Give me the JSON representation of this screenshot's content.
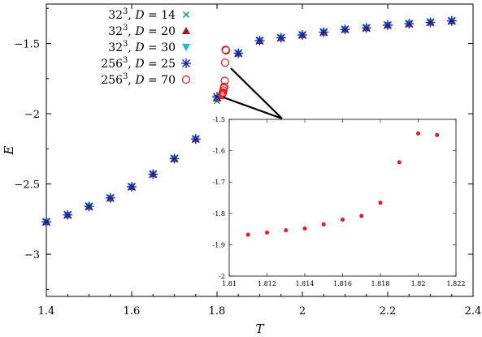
{
  "chart_data": [
    {
      "type": "scatter",
      "xlabel": "T",
      "ylabel": "E",
      "xlim": [
        1.4,
        2.4
      ],
      "ylim": [
        -3.3,
        -1.22
      ],
      "xticks": [
        1.4,
        1.6,
        1.8,
        2.0,
        2.2,
        2.4
      ],
      "xtick_labels": [
        "1.4",
        "1.6",
        "1.8",
        "2",
        "2.2",
        "2.4"
      ],
      "yticks": [
        -3,
        -2.5,
        -2,
        -1.5
      ],
      "ytick_labels": [
        "−3",
        "−2.5",
        "−2",
        "−1.5"
      ],
      "legend_position": "top-left",
      "series": [
        {
          "name_parts": [
            "32",
            "3",
            ", ",
            "D",
            " = 14"
          ],
          "marker": "x",
          "color": "#009e73",
          "x": [
            1.4,
            1.45,
            1.5,
            1.55,
            1.6,
            1.65,
            1.7,
            1.75,
            1.8,
            1.85,
            1.9,
            1.95,
            2.0,
            2.05,
            2.1,
            2.15,
            2.2,
            2.25,
            2.3,
            2.35
          ],
          "y": [
            -2.77,
            -2.72,
            -2.66,
            -2.6,
            -2.52,
            -2.43,
            -2.32,
            -2.18,
            -1.91,
            -1.57,
            -1.48,
            -1.46,
            -1.44,
            -1.42,
            -1.4,
            -1.39,
            -1.37,
            -1.36,
            -1.35,
            -1.34
          ]
        },
        {
          "name_parts": [
            "32",
            "3",
            ", ",
            "D",
            " = 20"
          ],
          "marker": "triangle-up",
          "color": "#9b1c1c",
          "x": [
            1.4,
            1.45,
            1.5,
            1.55,
            1.6,
            1.65,
            1.7,
            1.75,
            1.8,
            1.85,
            1.9,
            1.95,
            2.0,
            2.05,
            2.1,
            2.15,
            2.2,
            2.25,
            2.3,
            2.35
          ],
          "y": [
            -2.77,
            -2.72,
            -2.66,
            -2.6,
            -2.52,
            -2.43,
            -2.32,
            -2.18,
            -1.89,
            -1.57,
            -1.48,
            -1.46,
            -1.44,
            -1.42,
            -1.4,
            -1.39,
            -1.37,
            -1.36,
            -1.35,
            -1.34
          ]
        },
        {
          "name_parts": [
            "32",
            "3",
            ", ",
            "D",
            " = 30"
          ],
          "marker": "triangle-down",
          "color": "#17bcc8",
          "x": [
            1.4,
            1.45,
            1.5,
            1.55,
            1.6,
            1.65,
            1.7,
            1.75,
            1.8,
            1.85,
            1.9,
            1.95,
            2.0,
            2.05,
            2.1,
            2.15,
            2.2,
            2.25,
            2.3,
            2.35
          ],
          "y": [
            -2.77,
            -2.72,
            -2.66,
            -2.6,
            -2.52,
            -2.43,
            -2.32,
            -2.18,
            -1.89,
            -1.57,
            -1.48,
            -1.46,
            -1.44,
            -1.42,
            -1.4,
            -1.39,
            -1.37,
            -1.36,
            -1.35,
            -1.34
          ]
        },
        {
          "name_parts": [
            "256",
            "3",
            ", ",
            "D",
            " = 25"
          ],
          "marker": "asterisk",
          "color": "#1a1aa6",
          "x": [
            1.4,
            1.45,
            1.5,
            1.55,
            1.6,
            1.65,
            1.7,
            1.75,
            1.8,
            1.85,
            1.9,
            1.95,
            2.0,
            2.05,
            2.1,
            2.15,
            2.2,
            2.25,
            2.3,
            2.35
          ],
          "y": [
            -2.77,
            -2.72,
            -2.66,
            -2.6,
            -2.52,
            -2.43,
            -2.32,
            -2.18,
            -1.88,
            -1.57,
            -1.48,
            -1.46,
            -1.44,
            -1.42,
            -1.4,
            -1.39,
            -1.37,
            -1.36,
            -1.35,
            -1.34
          ]
        },
        {
          "name_parts": [
            "256",
            "3",
            ", ",
            "D",
            " = 70"
          ],
          "marker": "circle-open",
          "color": "#e41a1c",
          "x": [
            1.811,
            1.812,
            1.813,
            1.814,
            1.815,
            1.816,
            1.817,
            1.818,
            1.819,
            1.82,
            1.821
          ],
          "y": [
            -1.868,
            -1.861,
            -1.854,
            -1.848,
            -1.835,
            -1.82,
            -1.808,
            -1.766,
            -1.637,
            -1.545,
            -1.55
          ]
        }
      ]
    },
    {
      "type": "scatter",
      "inset": true,
      "xlim": [
        1.81,
        1.822
      ],
      "ylim": [
        -2.0,
        -1.5
      ],
      "xticks": [
        1.81,
        1.812,
        1.814,
        1.816,
        1.818,
        1.82,
        1.822
      ],
      "xtick_labels": [
        "1.81",
        "1.812",
        "1.814",
        "1.816",
        "1.818",
        "1.82",
        "1.822"
      ],
      "yticks": [
        -2.0,
        -1.9,
        -1.8,
        -1.7,
        -1.6,
        -1.5
      ],
      "ytick_labels": [
        "-2",
        "-1.9",
        "-1.8",
        "-1.7",
        "-1.6",
        "-1.5"
      ],
      "series": [
        {
          "marker": "dot",
          "color": "#e41a1c",
          "x": [
            1.811,
            1.812,
            1.813,
            1.814,
            1.815,
            1.816,
            1.817,
            1.818,
            1.819,
            1.82,
            1.821
          ],
          "y": [
            -1.868,
            -1.861,
            -1.854,
            -1.848,
            -1.835,
            -1.82,
            -1.808,
            -1.766,
            -1.637,
            -1.545,
            -1.55
          ]
        }
      ]
    }
  ]
}
